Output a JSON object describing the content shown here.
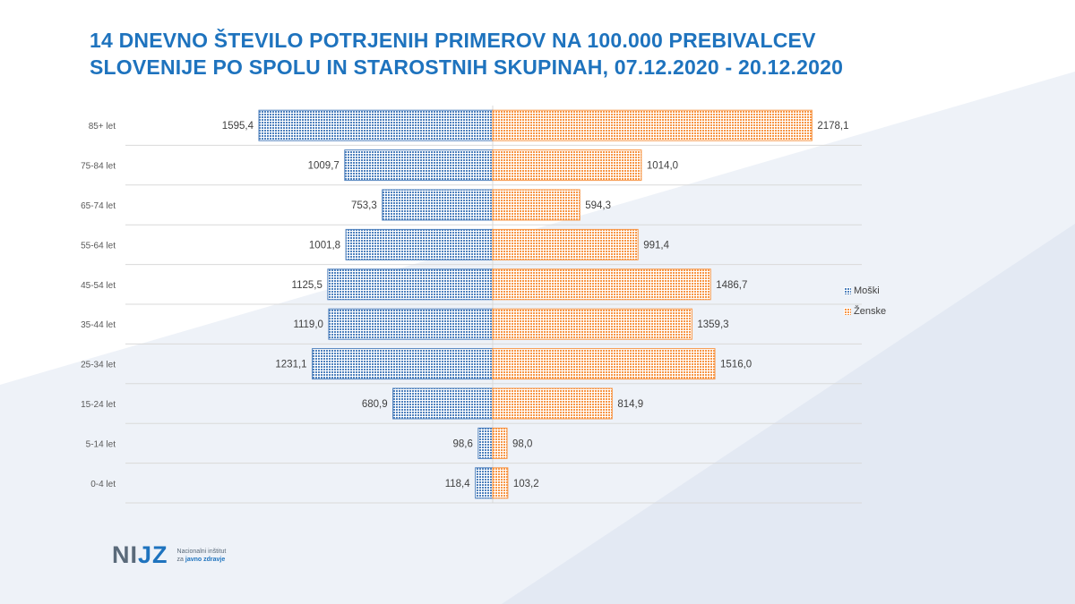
{
  "title_lines": [
    "14 DNEVNO ŠTEVILO POTRJENIH PRIMEROV NA 100.000 PREBIVALCEV",
    "SLOVENIJE PO SPOLU IN STAROSTNIH SKUPINAH, 07.12.2020 - 20.12.2020"
  ],
  "colors": {
    "title": "#1e73be",
    "male": "#4f81bd",
    "female": "#f79646"
  },
  "chart_data": {
    "type": "bar",
    "orientation": "horizontal",
    "layout": "population-pyramid",
    "categories": [
      "85+ let",
      "75-84 let",
      "65-74 let",
      "55-64 let",
      "45-54 let",
      "35-44 let",
      "25-34 let",
      "15-24 let",
      "5-14 let",
      "0-4 let"
    ],
    "series": [
      {
        "name": "Moški",
        "color": "#4f81bd",
        "values": [
          1595.4,
          1009.7,
          753.3,
          1001.8,
          1125.5,
          1119.0,
          1231.1,
          680.9,
          98.6,
          118.4
        ],
        "labels": [
          "1595,4",
          "1009,7",
          "753,3",
          "1001,8",
          "1125,5",
          "1119,0",
          "1231,1",
          "680,9",
          "98,6",
          "118,4"
        ]
      },
      {
        "name": "Ženske",
        "color": "#f79646",
        "values": [
          2178.1,
          1014.0,
          594.3,
          991.4,
          1486.7,
          1359.3,
          1516.0,
          814.9,
          98.0,
          103.2
        ],
        "labels": [
          "2178,1",
          "1014,0",
          "594,3",
          "991,4",
          "1486,7",
          "1359,3",
          "1516,0",
          "814,9",
          "98,0",
          "103,2"
        ]
      }
    ],
    "legend_position": "right",
    "grid": true
  },
  "logo": {
    "mark_prefix": "NI",
    "mark_accent": "JZ",
    "line1": "Nacionalni inštitut",
    "line2_prefix": "za",
    "line2_strong": "javno zdravje"
  }
}
